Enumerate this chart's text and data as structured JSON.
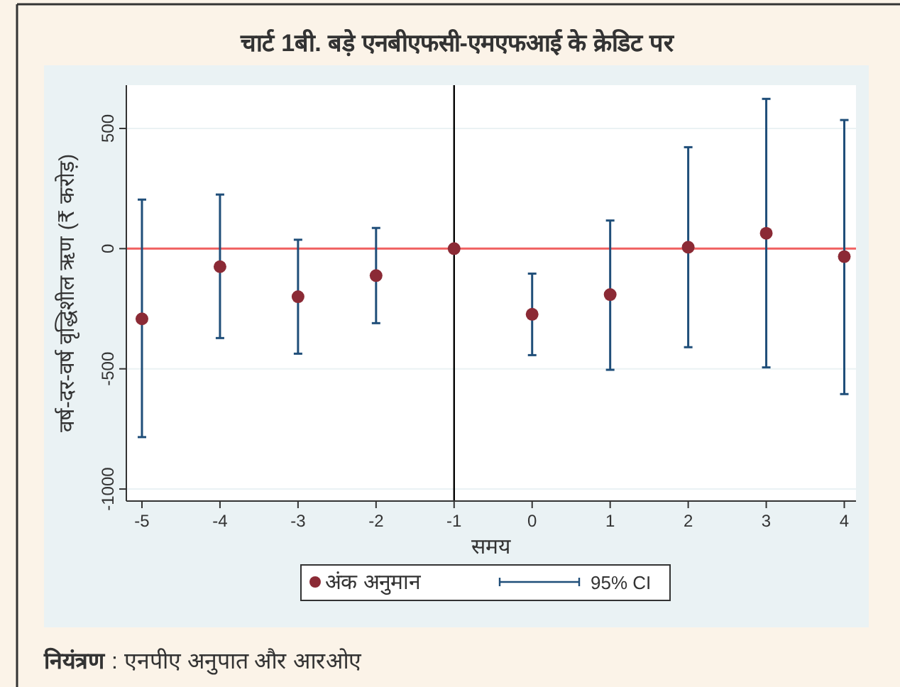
{
  "chart_data": {
    "type": "scatter",
    "title": "चार्ट 1बी. बड़े एनबीएफसी-एमएफआई के क्रेडिट पर",
    "xlabel": "समय",
    "ylabel": "वर्ष-दर-वर्ष वृद्धिशील ऋण  (₹ करोड़)",
    "x": [
      -5,
      -4,
      -3,
      -2,
      -1,
      0,
      1,
      2,
      3,
      4
    ],
    "series": [
      {
        "name": "अंक अनुमान",
        "color": "#8b2a35",
        "values": [
          -292,
          -75,
          -200,
          -112,
          0,
          -273,
          -191,
          6,
          64,
          -33
        ],
        "errors": [
          [
            -784,
            204
          ],
          [
            -372,
            225
          ],
          [
            -437,
            37
          ],
          [
            -310,
            86
          ],
          null,
          [
            -443,
            -104
          ],
          [
            -504,
            117
          ],
          [
            -410,
            422
          ],
          [
            -494,
            623
          ],
          [
            -605,
            535
          ]
        ]
      }
    ],
    "xlim": [
      -5.2,
      4.15
    ],
    "ylim": [
      -1050,
      680
    ],
    "xticks": [
      -5,
      -4,
      -3,
      -2,
      -1,
      0,
      1,
      2,
      3,
      4
    ],
    "yticks": [
      -1000,
      -500,
      0,
      500
    ],
    "grid": "y",
    "marker": "circle",
    "legend": "bottom",
    "ref_lines": [
      {
        "axis": "y",
        "value": 0,
        "color": "#f06060"
      },
      {
        "axis": "x",
        "value": -1,
        "color": "#000000"
      }
    ],
    "annotations": [
      "95% CI",
      "नियंत्रण : एनपीए अनुपात और आरओए"
    ]
  }
}
